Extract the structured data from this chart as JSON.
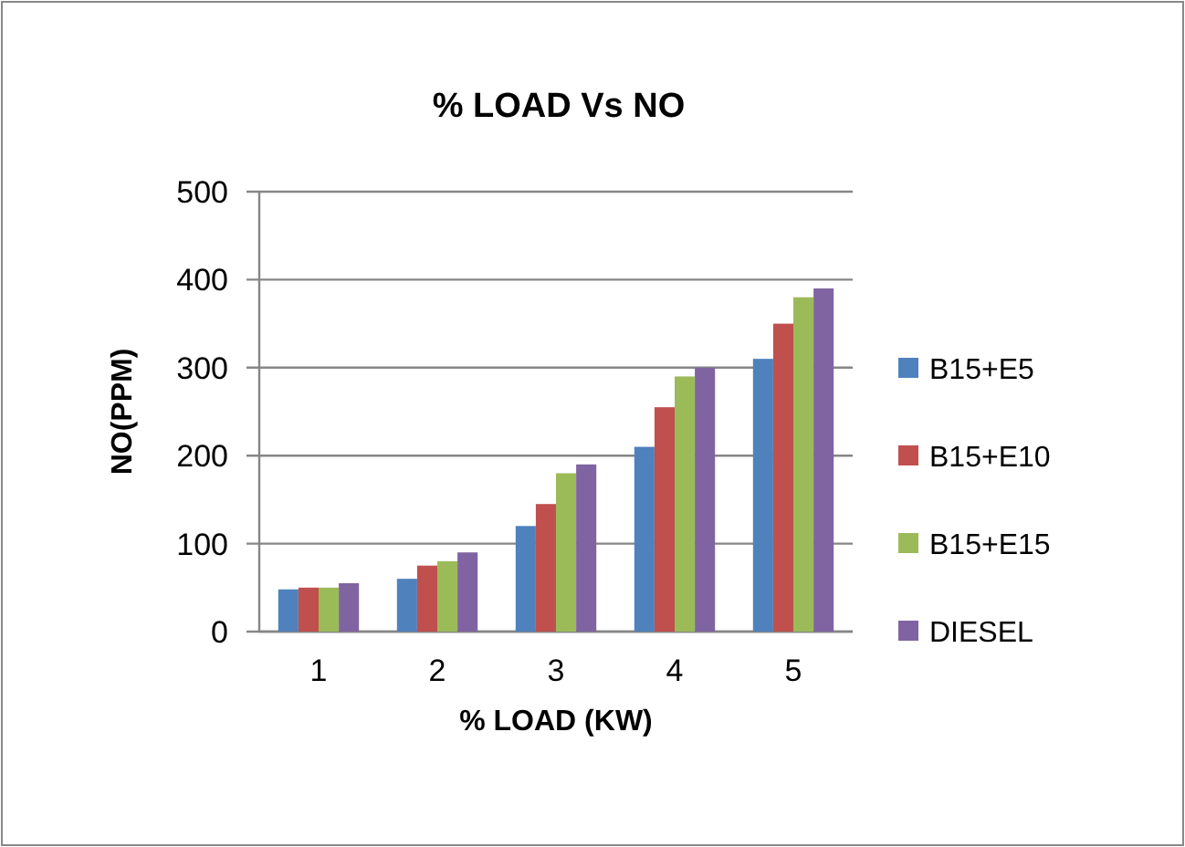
{
  "chart_data": {
    "type": "bar",
    "title": "% LOAD Vs NO",
    "xlabel": "% LOAD (KW)",
    "ylabel": "NO(PPM)",
    "categories": [
      "1",
      "2",
      "3",
      "4",
      "5"
    ],
    "series": [
      {
        "name": "B15+E5",
        "color": "#4f81bd",
        "values": [
          48,
          60,
          120,
          210,
          310
        ]
      },
      {
        "name": "B15+E10",
        "color": "#c0504d",
        "values": [
          50,
          75,
          145,
          255,
          350
        ]
      },
      {
        "name": "B15+E15",
        "color": "#9bbb59",
        "values": [
          50,
          80,
          180,
          290,
          380
        ]
      },
      {
        "name": "DIESEL",
        "color": "#8064a2",
        "values": [
          55,
          90,
          190,
          300,
          390
        ]
      }
    ],
    "ylim": [
      0,
      500
    ],
    "yticks": [
      0,
      100,
      200,
      300,
      400,
      500
    ],
    "grid": "y",
    "legend": "right"
  }
}
